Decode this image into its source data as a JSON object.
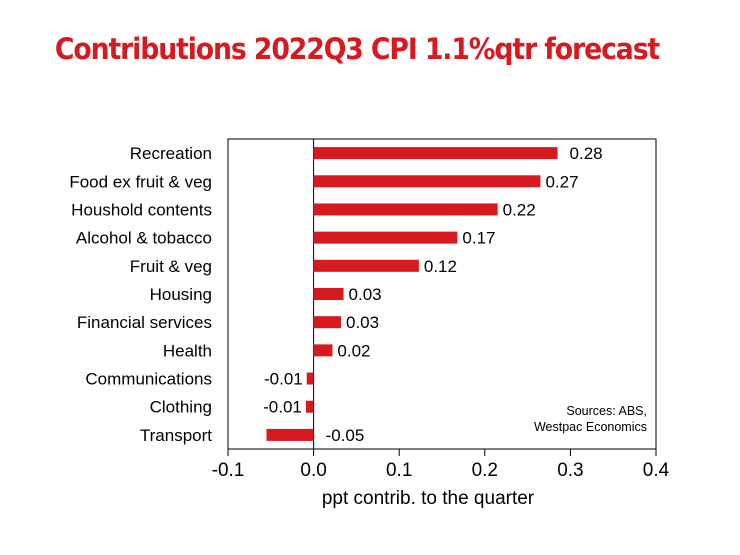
{
  "colors": {
    "bar": "#d71920",
    "title": "#d71920",
    "text": "#000000"
  },
  "chart_data": {
    "type": "bar",
    "orientation": "horizontal",
    "title": "Contributions 2022Q3 CPI 1.1%qtr forecast",
    "xlabel": "ppt contrib. to the quarter",
    "ylabel": "",
    "xlim": [
      -0.1,
      0.4
    ],
    "xticks": [
      -0.1,
      0.0,
      0.1,
      0.2,
      0.3,
      0.4
    ],
    "xtick_labels": [
      "-0.1",
      "0.0",
      "0.1",
      "0.2",
      "0.3",
      "0.4"
    ],
    "grid": false,
    "categories": [
      "Recreation",
      "Food ex fruit & veg",
      "Houshold contents",
      "Alcohol & tobacco",
      "Fruit & veg",
      "Housing",
      "Financial services",
      "Health",
      "Communications",
      "Clothing",
      "Transport"
    ],
    "values": [
      0.285,
      0.265,
      0.215,
      0.168,
      0.123,
      0.035,
      0.032,
      0.022,
      -0.008,
      -0.009,
      -0.055
    ],
    "data_labels": [
      "0.28",
      "0.27",
      "0.22",
      "0.17",
      "0.12",
      "0.03",
      "0.03",
      "0.02",
      "-0.01",
      "-0.01",
      "-0.05"
    ],
    "annotations": [
      "Sources: ABS,",
      "Westpac Economics"
    ]
  }
}
